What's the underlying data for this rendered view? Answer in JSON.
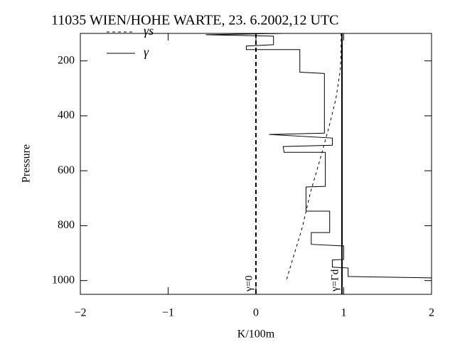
{
  "chart_data": {
    "type": "profile",
    "title": "11035  WIEN/HOHE WARTE, 23. 6.2002,12 UTC",
    "x_label": "K/100m",
    "y_label": "Pressure",
    "xlim": [
      -2,
      2
    ],
    "ylim": [
      1050,
      100
    ],
    "xticks": [
      {
        "value": -2,
        "label": "−2"
      },
      {
        "value": -1,
        "label": "−1"
      },
      0,
      1,
      2
    ],
    "yticks": [
      200,
      400,
      600,
      800,
      1000
    ],
    "series": [
      {
        "name": "γs",
        "color": "#000000",
        "dash": true,
        "x": [
          0.35,
          0.53,
          0.62,
          0.73,
          0.83,
          0.91,
          0.96,
          0.97,
          0.97
        ],
        "values": [
          995,
          804,
          680,
          559,
          443,
          339,
          236,
          159,
          100
        ]
      },
      {
        "name": "γ",
        "color": "#000000",
        "dash": false,
        "x": [
          0.32,
          -0.57,
          0.2,
          0.2,
          -0.11,
          -0.11,
          0.5,
          0.5,
          0.78,
          0.78,
          0.15,
          0.87,
          0.87,
          0.31,
          0.32,
          0.79,
          0.79,
          0.57,
          0.57,
          0.84,
          0.84,
          0.63,
          0.63,
          1.0,
          1.0,
          0.87,
          0.87,
          1.05,
          1.05,
          2.0
        ],
        "values": [
          100,
          105,
          110,
          141,
          146,
          159,
          159,
          241,
          246,
          463,
          468,
          481,
          507,
          512,
          533,
          533,
          657,
          659,
          747,
          747,
          825,
          825,
          868,
          874,
          923,
          925,
          951,
          954,
          985,
          990
        ]
      }
    ],
    "reference_lines": [
      {
        "value": 0,
        "label": "γ=0",
        "dash": true
      },
      {
        "value": 0.98,
        "label": "γ=Γd",
        "dash": false
      }
    ]
  }
}
